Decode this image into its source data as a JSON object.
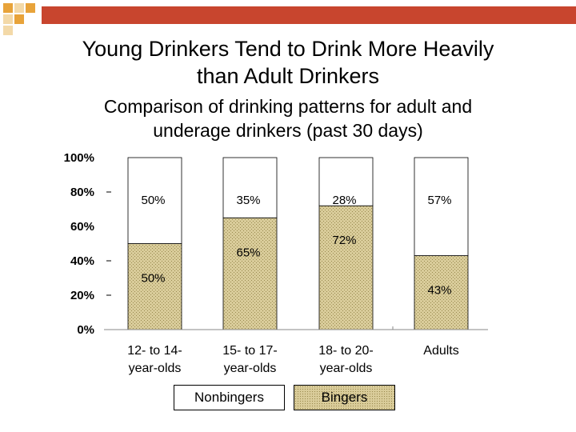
{
  "slide": {
    "title_line1": "Young Drinkers Tend to Drink More Heavily",
    "title_line2": "than Adult Drinkers",
    "subtitle_line1": "Comparison of drinking patterns for adult and",
    "subtitle_line2": "underage drinkers (past 30 days)"
  },
  "colors": {
    "accent_bar": "#c8452e",
    "deco_square_dark": "#e8a33a",
    "deco_square_light": "#f3d9a8",
    "bingers_fill": "#d9cc9a",
    "nonbingers_fill": "#ffffff"
  },
  "legend": [
    {
      "label": "Nonbingers",
      "fill": "#ffffff"
    },
    {
      "label": "Bingers",
      "fill": "#d9cc9a"
    }
  ],
  "chart_data": {
    "type": "bar",
    "stacked": true,
    "categories": [
      [
        "12- to 14-",
        "year-olds"
      ],
      [
        "15- to 17-",
        "year-olds"
      ],
      [
        "18- to 20-",
        "year-olds"
      ],
      [
        "Adults"
      ]
    ],
    "series": [
      {
        "name": "Bingers",
        "values": [
          50,
          65,
          72,
          43
        ],
        "labels": [
          "50%",
          "65%",
          "72%",
          "43%"
        ]
      },
      {
        "name": "Nonbingers",
        "values": [
          50,
          35,
          28,
          57
        ],
        "labels": [
          "50%",
          "35%",
          "28%",
          "57%"
        ]
      }
    ],
    "ylim": [
      0,
      100
    ],
    "yticks": [
      {
        "value": 0,
        "label": "0%"
      },
      {
        "value": 20,
        "label": "20%"
      },
      {
        "value": 40,
        "label": "40%"
      },
      {
        "value": 60,
        "label": "60%"
      },
      {
        "value": 80,
        "label": "80%"
      },
      {
        "value": 100,
        "label": "100%"
      }
    ],
    "grid": false,
    "legend_position": "bottom"
  }
}
